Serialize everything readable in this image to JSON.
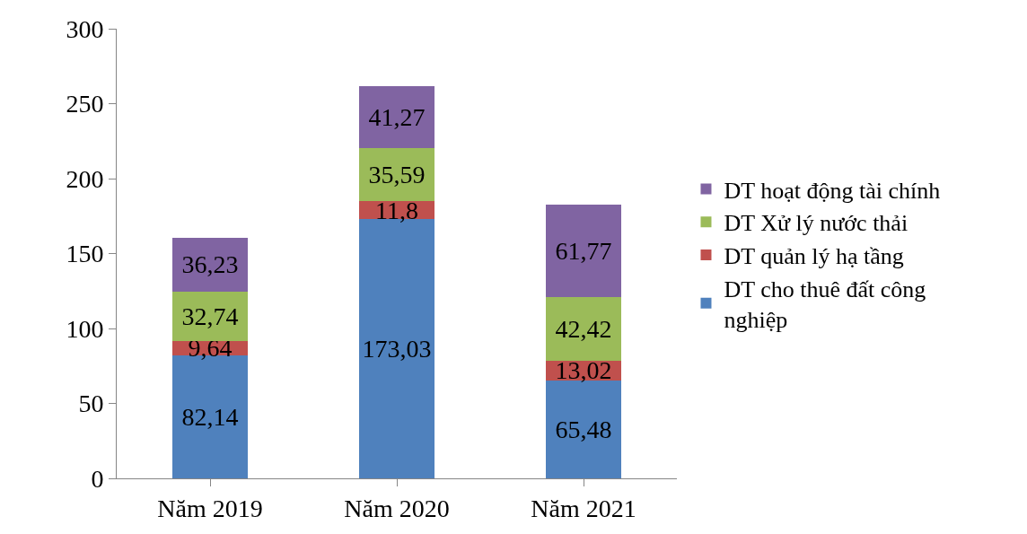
{
  "chart_data": {
    "type": "bar",
    "stacked": true,
    "categories": [
      "Năm 2019",
      "Năm 2020",
      "Năm 2021"
    ],
    "series": [
      {
        "name": "DT cho thuê đất công nghiệp",
        "color": "#4f81bd",
        "values": [
          82.14,
          173.03,
          65.48
        ],
        "value_labels": [
          "82,14",
          "173,03",
          "65,48"
        ]
      },
      {
        "name": "DT quản lý hạ tầng",
        "color": "#c0504d",
        "values": [
          9.64,
          11.8,
          13.02
        ],
        "value_labels": [
          "9,64",
          "11,8",
          "13,02"
        ]
      },
      {
        "name": "DT Xử lý nước thải",
        "color": "#9bbb59",
        "values": [
          32.74,
          35.59,
          42.42
        ],
        "value_labels": [
          "32,74",
          "35,59",
          "42,42"
        ]
      },
      {
        "name": "DT hoạt động tài chính",
        "color": "#8064a2",
        "values": [
          36.23,
          41.27,
          61.77
        ],
        "value_labels": [
          "36,23",
          "41,27",
          "61,77"
        ]
      }
    ],
    "ylim": [
      0,
      300
    ],
    "yticks": [
      0,
      50,
      100,
      150,
      200,
      250,
      300
    ],
    "legend": "right"
  }
}
